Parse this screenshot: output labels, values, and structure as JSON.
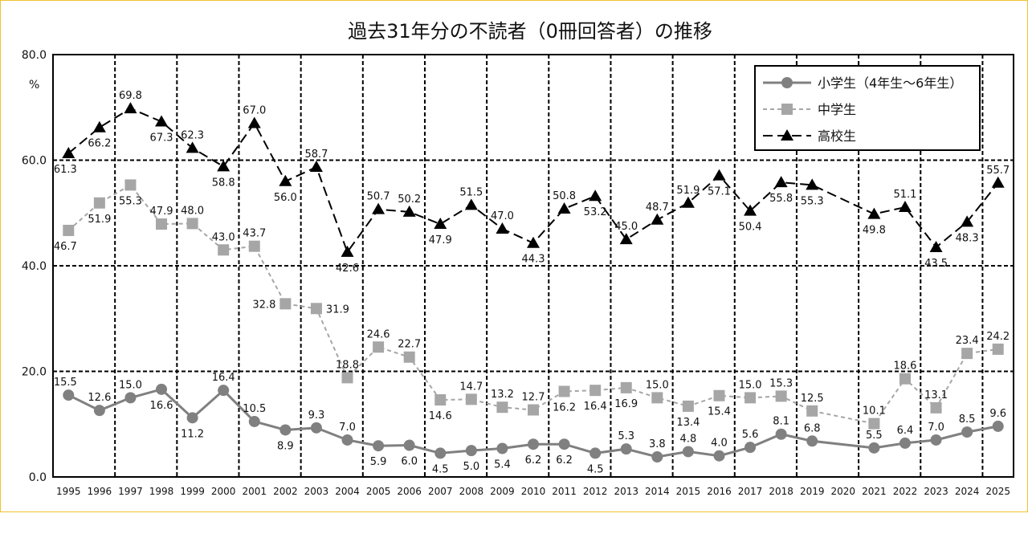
{
  "chart_data": {
    "type": "line",
    "title": "過去31年分の不読者（0冊回答者）の推移",
    "ylabel": "%",
    "ylim": [
      0,
      80
    ],
    "yticks": [
      "0.0",
      "20.0",
      "40.0",
      "60.0",
      "80.0"
    ],
    "grid": true,
    "legend_position": "top-right",
    "categories": [
      "1995",
      "1996",
      "1997",
      "1998",
      "1999",
      "2000",
      "2001",
      "2002",
      "2003",
      "2004",
      "2005",
      "2006",
      "2007",
      "2008",
      "2009",
      "2010",
      "2011",
      "2012",
      "2013",
      "2014",
      "2015",
      "2016",
      "2017",
      "2018",
      "2019",
      "2020",
      "2021",
      "2022",
      "2023",
      "2024",
      "2025"
    ],
    "series": [
      {
        "name": "小学生（4年生～6年生）",
        "color": "#808080",
        "marker": "circle",
        "dash": "solid",
        "values": [
          15.5,
          12.6,
          15.0,
          16.6,
          11.2,
          16.4,
          10.5,
          8.9,
          9.3,
          7.0,
          5.9,
          6.0,
          4.5,
          5.0,
          5.4,
          6.2,
          6.2,
          4.5,
          5.3,
          3.8,
          4.8,
          4.0,
          5.6,
          8.1,
          6.8,
          null,
          5.5,
          6.4,
          7.0,
          8.5,
          9.6
        ]
      },
      {
        "name": "中学生",
        "color": "#a6a6a6",
        "marker": "square",
        "dash": "dashed",
        "values": [
          46.7,
          51.9,
          55.3,
          47.9,
          48.0,
          43.0,
          43.7,
          32.8,
          31.9,
          18.8,
          24.6,
          22.7,
          14.6,
          14.7,
          13.2,
          12.7,
          16.2,
          16.4,
          16.9,
          15.0,
          13.4,
          15.4,
          15.0,
          15.3,
          12.5,
          null,
          10.1,
          18.6,
          13.1,
          23.4,
          24.2
        ]
      },
      {
        "name": "高校生",
        "color": "#000000",
        "marker": "triangle",
        "dash": "long-dashed",
        "values": [
          61.3,
          66.2,
          69.8,
          67.3,
          62.3,
          58.8,
          67.0,
          56.0,
          58.7,
          42.6,
          50.7,
          50.2,
          47.9,
          51.5,
          47.0,
          44.3,
          50.8,
          53.2,
          45.0,
          48.7,
          51.9,
          57.1,
          50.4,
          55.8,
          55.3,
          null,
          49.8,
          51.1,
          43.5,
          48.3,
          55.7
        ]
      }
    ]
  }
}
